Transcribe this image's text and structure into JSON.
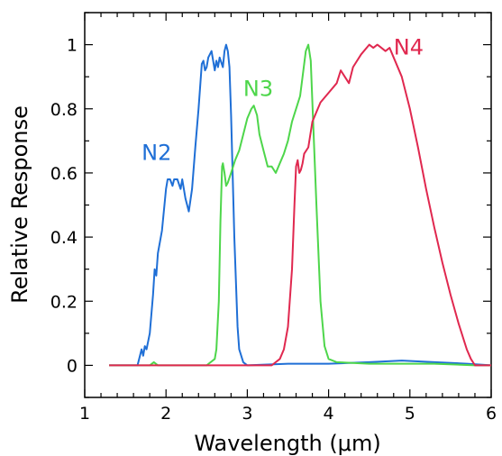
{
  "chart_data": {
    "type": "line",
    "title": "",
    "xlabel": "Wavelength (μm)",
    "ylabel": "Relative Response",
    "xlim": [
      1,
      6
    ],
    "ylim": [
      -0.1,
      1.1
    ],
    "xticks": [
      1,
      2,
      3,
      4,
      5,
      6
    ],
    "xtick_labels": [
      "1",
      "2",
      "3",
      "4",
      "5",
      "6"
    ],
    "yticks": [
      0,
      0.2,
      0.4,
      0.6,
      0.8,
      1
    ],
    "ytick_labels": [
      "0",
      "0.2",
      "0.4",
      "0.6",
      "0.8",
      "1"
    ],
    "grid": false,
    "legend": "none",
    "series": [
      {
        "name": "N2",
        "color": "#1f6fd6",
        "x": [
          1.3,
          1.65,
          1.7,
          1.72,
          1.74,
          1.76,
          1.8,
          1.84,
          1.86,
          1.88,
          1.9,
          1.95,
          2.0,
          2.02,
          2.05,
          2.08,
          2.1,
          2.14,
          2.18,
          2.2,
          2.24,
          2.28,
          2.32,
          2.36,
          2.4,
          2.44,
          2.46,
          2.48,
          2.5,
          2.52,
          2.56,
          2.6,
          2.62,
          2.64,
          2.66,
          2.7,
          2.72,
          2.74,
          2.76,
          2.78,
          2.8,
          2.84,
          2.88,
          2.9,
          2.95,
          3.0,
          3.5,
          4.0,
          4.5,
          4.9,
          5.3,
          5.7,
          6.0
        ],
        "y": [
          0.0,
          0.0,
          0.05,
          0.03,
          0.06,
          0.05,
          0.1,
          0.22,
          0.3,
          0.28,
          0.35,
          0.42,
          0.55,
          0.58,
          0.58,
          0.56,
          0.58,
          0.58,
          0.55,
          0.58,
          0.52,
          0.48,
          0.55,
          0.68,
          0.8,
          0.94,
          0.95,
          0.92,
          0.93,
          0.96,
          0.98,
          0.92,
          0.95,
          0.93,
          0.96,
          0.93,
          0.98,
          1.0,
          0.98,
          0.93,
          0.78,
          0.4,
          0.12,
          0.05,
          0.01,
          0.0,
          0.005,
          0.005,
          0.01,
          0.015,
          0.01,
          0.005,
          0.0
        ]
      },
      {
        "name": "N3",
        "color": "#4ed64b",
        "x": [
          1.3,
          1.8,
          1.85,
          1.9,
          2.5,
          2.6,
          2.62,
          2.65,
          2.67,
          2.69,
          2.7,
          2.72,
          2.74,
          2.76,
          2.8,
          2.85,
          2.9,
          2.95,
          3.0,
          3.05,
          3.08,
          3.12,
          3.15,
          3.2,
          3.25,
          3.3,
          3.35,
          3.4,
          3.45,
          3.5,
          3.55,
          3.6,
          3.65,
          3.68,
          3.72,
          3.75,
          3.78,
          3.8,
          3.85,
          3.9,
          3.95,
          4.0,
          4.1,
          4.5,
          4.9,
          5.3,
          5.8,
          6.0
        ],
        "y": [
          0.0,
          0.0,
          0.01,
          0.0,
          0.0,
          0.02,
          0.05,
          0.2,
          0.45,
          0.62,
          0.63,
          0.6,
          0.56,
          0.57,
          0.6,
          0.64,
          0.67,
          0.72,
          0.77,
          0.8,
          0.81,
          0.78,
          0.72,
          0.67,
          0.62,
          0.62,
          0.6,
          0.63,
          0.66,
          0.7,
          0.76,
          0.8,
          0.84,
          0.9,
          0.98,
          1.0,
          0.95,
          0.82,
          0.5,
          0.2,
          0.06,
          0.02,
          0.01,
          0.005,
          0.005,
          0.005,
          0.0,
          0.0
        ]
      },
      {
        "name": "N4",
        "color": "#e0284f",
        "x": [
          1.3,
          3.3,
          3.4,
          3.45,
          3.5,
          3.55,
          3.58,
          3.6,
          3.62,
          3.64,
          3.66,
          3.68,
          3.7,
          3.75,
          3.8,
          3.9,
          4.0,
          4.1,
          4.15,
          4.2,
          4.25,
          4.3,
          4.4,
          4.5,
          4.55,
          4.6,
          4.65,
          4.7,
          4.75,
          4.8,
          4.9,
          5.0,
          5.1,
          5.2,
          5.3,
          5.4,
          5.5,
          5.6,
          5.7,
          5.75,
          5.8,
          5.85,
          6.0
        ],
        "y": [
          0.0,
          0.0,
          0.02,
          0.05,
          0.12,
          0.3,
          0.5,
          0.62,
          0.64,
          0.6,
          0.61,
          0.63,
          0.66,
          0.68,
          0.76,
          0.82,
          0.85,
          0.88,
          0.92,
          0.9,
          0.88,
          0.93,
          0.97,
          1.0,
          0.99,
          1.0,
          0.99,
          0.98,
          0.99,
          0.96,
          0.9,
          0.8,
          0.68,
          0.55,
          0.43,
          0.32,
          0.22,
          0.13,
          0.05,
          0.02,
          0.0,
          0.0,
          0.0
        ]
      }
    ],
    "annotations": [
      {
        "text": "N2",
        "x": 1.7,
        "y": 0.64,
        "color": "#1f6fd6"
      },
      {
        "text": "N3",
        "x": 2.95,
        "y": 0.84,
        "color": "#4ed64b"
      },
      {
        "text": "N4",
        "x": 4.8,
        "y": 0.97,
        "color": "#e0284f"
      }
    ]
  }
}
